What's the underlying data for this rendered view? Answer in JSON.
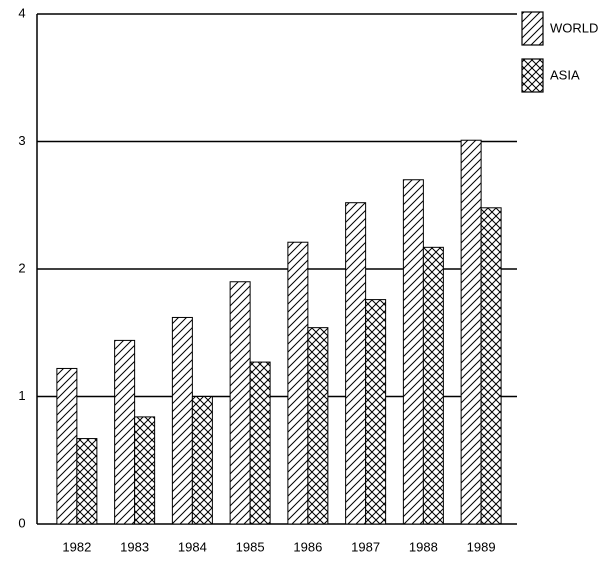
{
  "chart_data": {
    "type": "bar",
    "categories": [
      "1982",
      "1983",
      "1984",
      "1985",
      "1986",
      "1987",
      "1988",
      "1989"
    ],
    "series": [
      {
        "name": "WORLD",
        "color": "#000000",
        "pattern": "diagonal",
        "values": [
          1.22,
          1.44,
          1.62,
          1.9,
          2.21,
          2.52,
          2.7,
          3.01
        ]
      },
      {
        "name": "ASIA",
        "color": "#000000",
        "pattern": "crosshatch",
        "values": [
          0.67,
          0.84,
          1.0,
          1.27,
          1.54,
          1.76,
          2.17,
          2.48
        ]
      }
    ],
    "ylim": [
      0,
      4
    ],
    "yticks": [
      0,
      1,
      2,
      3,
      4
    ],
    "grid": true,
    "legend": "top-right"
  }
}
